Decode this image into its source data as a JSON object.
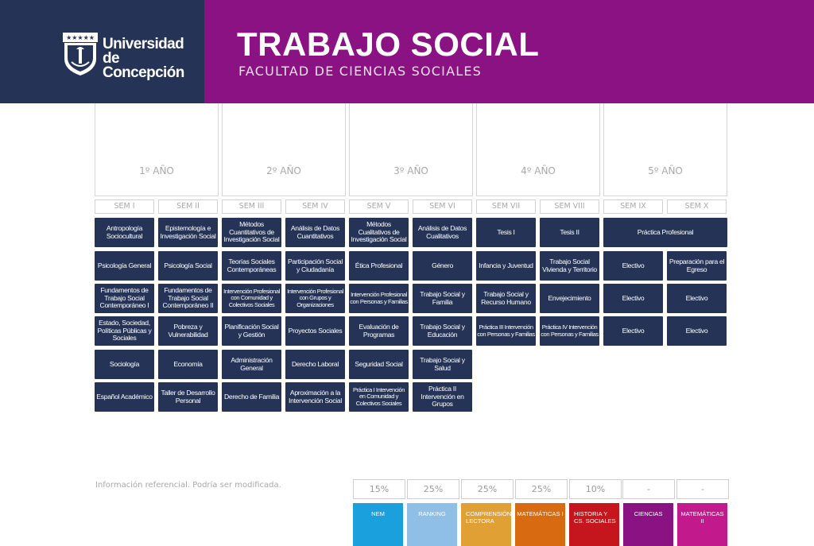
{
  "header": {
    "university_line1": "Universidad",
    "university_line2": "de Concepción",
    "title": "TRABAJO SOCIAL",
    "subtitle": "FACULTAD DE CIENCIAS SOCIALES",
    "colors": {
      "navy": "#253456",
      "purple": "#8b1282"
    }
  },
  "years": [
    "1º AÑO",
    "2º AÑO",
    "3º AÑO",
    "4º AÑO",
    "5º AÑO"
  ],
  "semesters": [
    "SEM I",
    "SEM II",
    "SEM III",
    "SEM IV",
    "SEM V",
    "SEM VI",
    "SEM VII",
    "SEM VIII",
    "SEM IX",
    "SEM X"
  ],
  "courses": {
    "sem1": [
      "Antropología Sociocultural",
      "Psicología General",
      "Fundamentos de Trabajo Social Contemporáneo I",
      "Estado, Sociedad, Políticas Públicas y Sociales",
      "Sociología",
      "Español Académico"
    ],
    "sem2": [
      "Epistemología e Investigación Social",
      "Psicología Social",
      "Fundamentos de Trabajo Social Contemporáneo II",
      "Pobreza y Vulnerabilidad",
      "Economía",
      "Taller de Desarrollo Personal"
    ],
    "sem3": [
      "Métodos Cuantitativos de Investigación Social",
      "Teorías Sociales Contemporáneas",
      "Intervención Profesional con Comunidad y Colectivos Sociales",
      "Planificación Social y Gestión",
      "Administración General",
      "Derecho de Familia"
    ],
    "sem4": [
      "Análisis de Datos Cuantitativos",
      "Participación Social y Ciudadanía",
      "Intervención Profesional con Grupos y Organizaciones",
      "Proyectos Sociales",
      "Derecho Laboral",
      "Aproximación a la Intervención Social"
    ],
    "sem5": [
      "Métodos Cualitativos de Investigación Social",
      "Ética Profesional",
      "Intervención Profesional con Personas y Familias",
      "Evaluación de Programas",
      "Seguridad Social",
      "Práctica I Intervención en Comunidad y Colectivos Sociales"
    ],
    "sem6": [
      "Análisis de Datos Cualitativos",
      "Género",
      "Trabajo Social y Familia",
      "Trabajo Social y Educación",
      "Trabajo Social y Salud",
      "Práctica II Intervención en Grupos"
    ],
    "sem7": [
      "Tesis I",
      "Infancia y Juventud",
      "Trabajo Social y Recurso Humano",
      "Práctica III Intervención con Personas y Familias"
    ],
    "sem8": [
      "Tesis II",
      "Trabajo Social Vivienda y Territorio",
      "Envejecimiento",
      "Práctica IV Intervención con Personas y Familias"
    ],
    "sem9_10_wide": "Práctica Profesional",
    "sem9": [
      "Electivo",
      "Electivo",
      "Electivo"
    ],
    "sem10": [
      "Preparación para el Egreso",
      "Electivo",
      "Electivo"
    ]
  },
  "note": "Información referencial. Podría ser modificada.",
  "weights": [
    {
      "pct": "15%",
      "label": "NEM",
      "color": "#1aa0dc"
    },
    {
      "pct": "25%",
      "label": "RANKING",
      "color": "#8fbfe6"
    },
    {
      "pct": "25%",
      "label": "COMPRENSIÓN LECTORA",
      "color": "#e0a033"
    },
    {
      "pct": "25%",
      "label": "MATEMÁTICAS I",
      "color": "#d86a12"
    },
    {
      "pct": "10%",
      "label": "HISTORIA Y CS. SOCIALES",
      "color": "#c4161c"
    },
    {
      "pct": "-",
      "label": "CIENCIAS",
      "color": "#8b1282"
    },
    {
      "pct": "-",
      "label": "MATEMÁTICAS II",
      "color": "#c21a8c"
    }
  ]
}
